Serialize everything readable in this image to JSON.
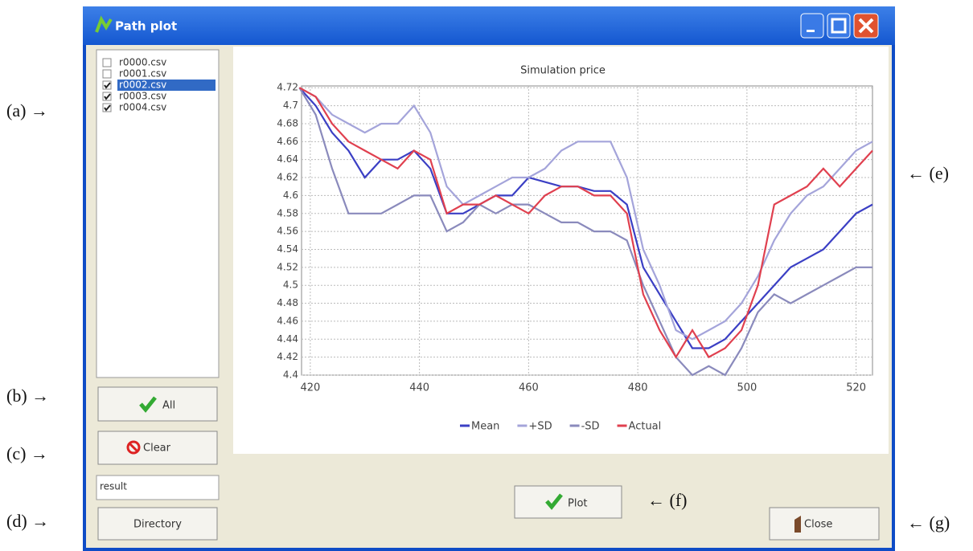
{
  "window": {
    "title": "Path plot"
  },
  "file_list": {
    "items": [
      {
        "label": "r0000.csv",
        "checked": false
      },
      {
        "label": "r0001.csv",
        "checked": false
      },
      {
        "label": "r0002.csv",
        "checked": true
      },
      {
        "label": "r0003.csv",
        "checked": true
      },
      {
        "label": "r0004.csv",
        "checked": true
      }
    ],
    "selected": 2
  },
  "buttons": {
    "all": "All",
    "clear": "Clear",
    "directory": "Directory",
    "plot": "Plot",
    "close": "Close"
  },
  "directory_field": "result",
  "annotations": {
    "a": "(a) →",
    "b": "(b) →",
    "c": "(c) →",
    "d": "(d) →",
    "e": "← (e)",
    "f": "← (f)",
    "g": "← (g)"
  },
  "chart_data": {
    "type": "line",
    "title": "Simulation price",
    "x": [
      418,
      421,
      424,
      427,
      430,
      433,
      436,
      439,
      442,
      445,
      448,
      451,
      454,
      457,
      460,
      463,
      466,
      469,
      472,
      475,
      478,
      481,
      484,
      487,
      490,
      493,
      496,
      499,
      502,
      505,
      508,
      511,
      514,
      517,
      520,
      523
    ],
    "series": [
      {
        "name": "Mean",
        "color": "#3b3fc4",
        "values": [
          4.72,
          4.7,
          4.67,
          4.65,
          4.62,
          4.64,
          4.64,
          4.65,
          4.63,
          4.58,
          4.58,
          4.59,
          4.6,
          4.6,
          4.62,
          4.615,
          4.61,
          4.61,
          4.605,
          4.605,
          4.59,
          4.52,
          4.49,
          4.46,
          4.43,
          4.43,
          4.44,
          4.46,
          4.48,
          4.5,
          4.52,
          4.53,
          4.54,
          4.56,
          4.58,
          4.59
        ]
      },
      {
        "name": "+SD",
        "color": "#a4a4da",
        "values": [
          4.72,
          4.71,
          4.69,
          4.68,
          4.67,
          4.68,
          4.68,
          4.7,
          4.67,
          4.61,
          4.59,
          4.6,
          4.61,
          4.62,
          4.62,
          4.63,
          4.65,
          4.66,
          4.66,
          4.66,
          4.62,
          4.54,
          4.5,
          4.45,
          4.44,
          4.45,
          4.46,
          4.48,
          4.51,
          4.55,
          4.58,
          4.6,
          4.61,
          4.63,
          4.65,
          4.66
        ]
      },
      {
        "name": "-SD",
        "color": "#8a8abc",
        "values": [
          4.72,
          4.69,
          4.63,
          4.58,
          4.58,
          4.58,
          4.59,
          4.6,
          4.6,
          4.56,
          4.57,
          4.59,
          4.58,
          4.59,
          4.59,
          4.58,
          4.57,
          4.57,
          4.56,
          4.56,
          4.55,
          4.5,
          4.46,
          4.42,
          4.4,
          4.41,
          4.4,
          4.43,
          4.47,
          4.49,
          4.48,
          4.49,
          4.5,
          4.51,
          4.52,
          4.52
        ]
      },
      {
        "name": "Actual",
        "color": "#e0404f",
        "values": [
          4.72,
          4.71,
          4.68,
          4.66,
          4.65,
          4.64,
          4.63,
          4.65,
          4.64,
          4.58,
          4.59,
          4.59,
          4.6,
          4.59,
          4.58,
          4.6,
          4.61,
          4.61,
          4.6,
          4.6,
          4.58,
          4.49,
          4.45,
          4.42,
          4.45,
          4.42,
          4.43,
          4.45,
          4.5,
          4.59,
          4.6,
          4.61,
          4.63,
          4.61,
          4.63,
          4.65
        ]
      }
    ],
    "xlim": [
      418.4,
      523
    ],
    "xticks": [
      420,
      440,
      460,
      480,
      500,
      520
    ],
    "ylim": [
      4.4,
      4.722
    ],
    "yticks": [
      4.4,
      4.42,
      4.44,
      4.46,
      4.48,
      4.5,
      4.52,
      4.54,
      4.56,
      4.58,
      4.6,
      4.62,
      4.64,
      4.66,
      4.68,
      4.7,
      4.72
    ],
    "grid": true
  }
}
